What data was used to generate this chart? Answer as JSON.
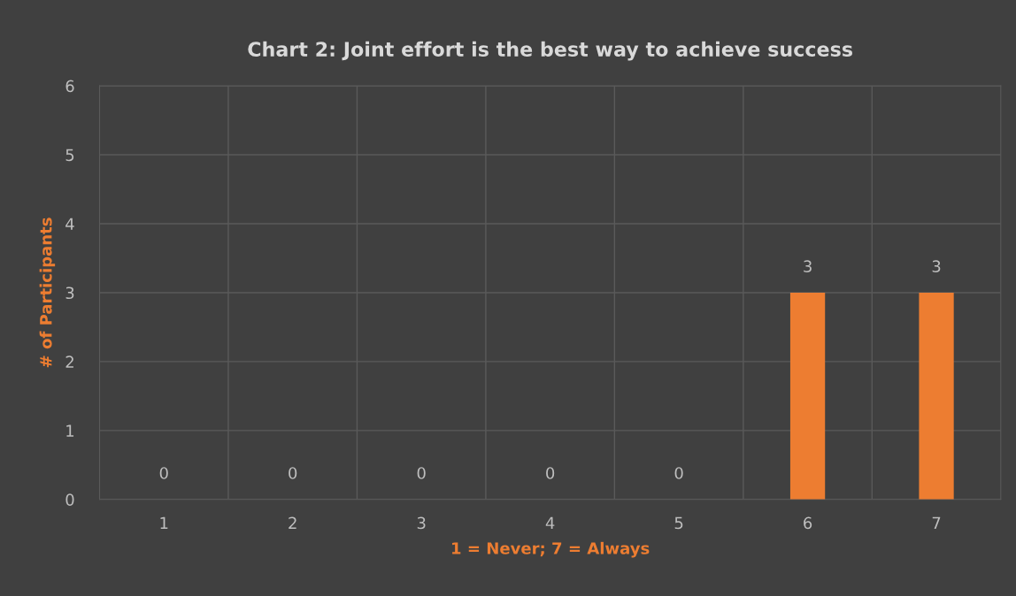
{
  "chart_data": {
    "type": "bar",
    "title": "Chart 2: Joint effort is the best way to achieve success",
    "xlabel": "1 = Never; 7 = Always",
    "ylabel": "# of Participants",
    "categories": [
      "1",
      "2",
      "3",
      "4",
      "5",
      "6",
      "7"
    ],
    "values": [
      0,
      0,
      0,
      0,
      0,
      3,
      3
    ],
    "color": "#ed7d31",
    "ylim": [
      0,
      6
    ],
    "yticks": [
      0,
      1,
      2,
      3,
      4,
      5,
      6
    ],
    "grid": true,
    "data_labels": true
  }
}
